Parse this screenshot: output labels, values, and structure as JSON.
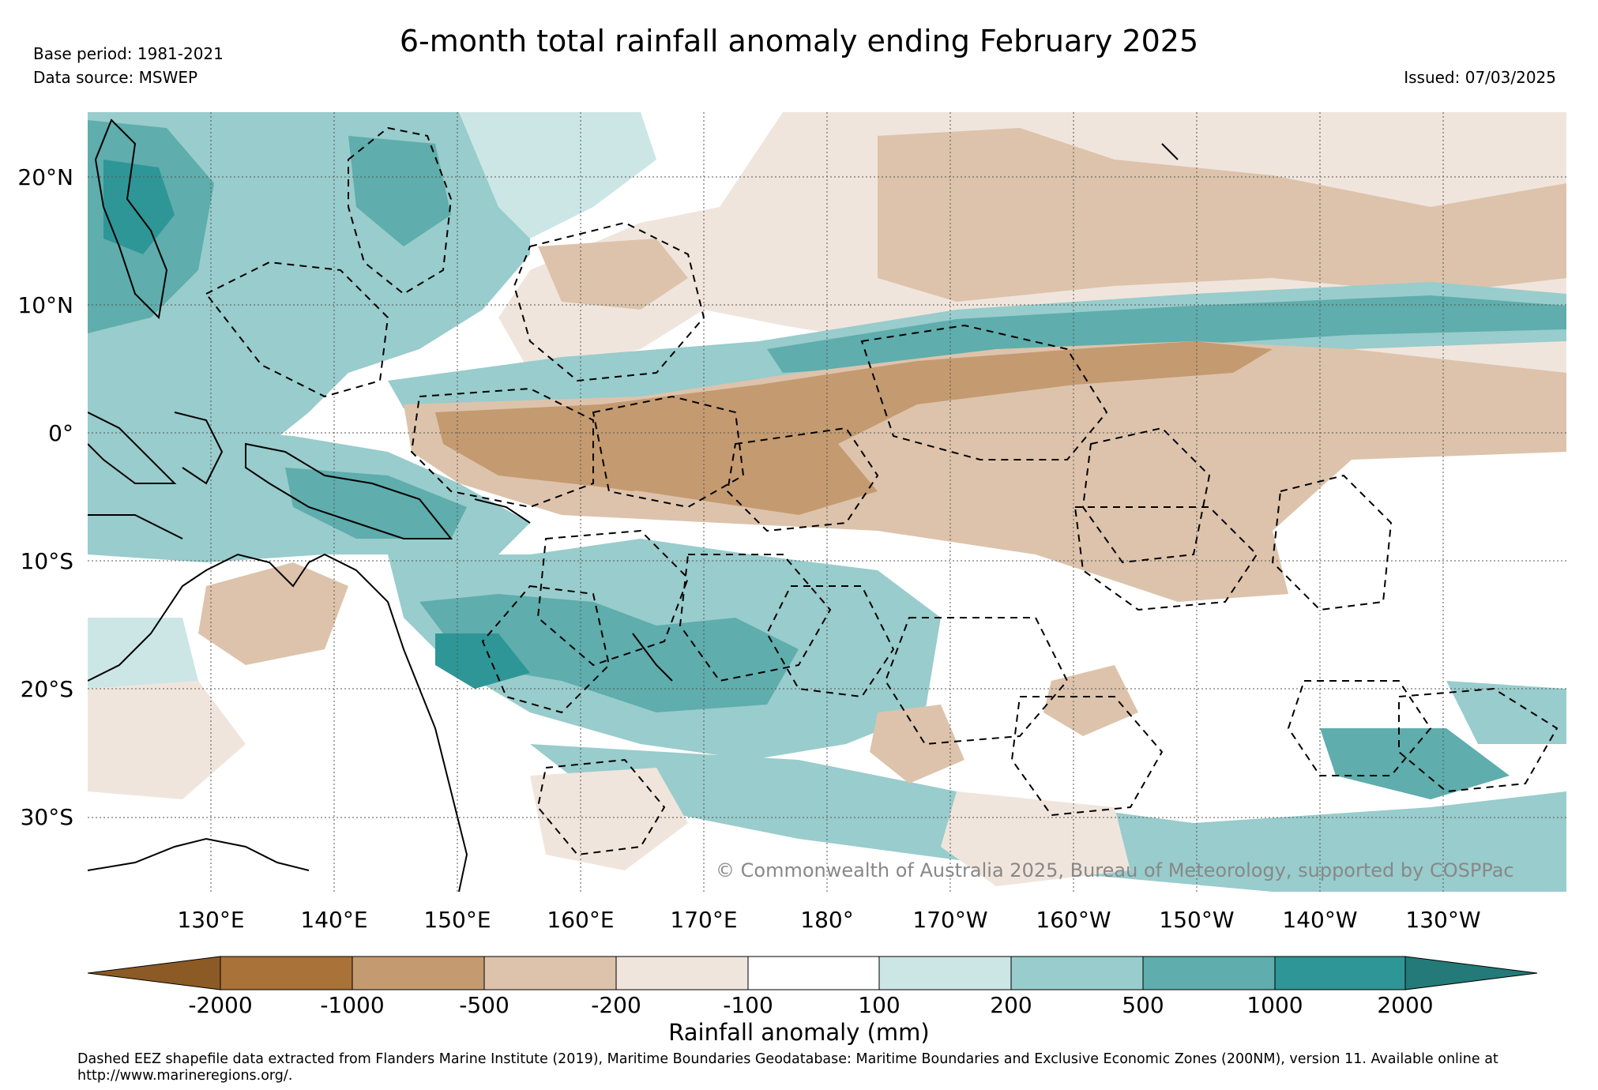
{
  "header": {
    "title": "6-month total rainfall anomaly ending February 2025",
    "base_period": "Base period: 1981-2021",
    "data_source": "Data source: MSWEP",
    "issued": "Issued: 07/03/2025"
  },
  "map": {
    "region": "Tropical Pacific and Maritime Continent",
    "projection": "equirectangular",
    "lon_range": [
      120,
      240
    ],
    "lat_range": [
      -36,
      25
    ],
    "lat_ticks": [
      "20°N",
      "10°N",
      "0°",
      "10°S",
      "20°S",
      "30°S"
    ],
    "lon_ticks": [
      "130°E",
      "140°E",
      "150°E",
      "160°E",
      "170°E",
      "180°",
      "170°W",
      "160°W",
      "150°W",
      "140°W",
      "130°W"
    ],
    "gridlines": true,
    "overlay": "Dashed EEZ boundaries and coastlines",
    "copyright": "© Commonwealth of Australia 2025, Bureau of Meteorology, supported by COSPPac"
  },
  "colorbar": {
    "label": "Rainfall anomaly (mm)",
    "ticks": [
      "-2000",
      "-1000",
      "-500",
      "-200",
      "-100",
      "100",
      "200",
      "500",
      "1000",
      "2000"
    ],
    "colors": [
      "#8c5a24",
      "#a87238",
      "#c49a70",
      "#ddc3ab",
      "#f0e5dc",
      "#ffffff",
      "#cce6e6",
      "#99cccc",
      "#5fadad",
      "#2e9696",
      "#237a78"
    ]
  },
  "footnote": "Dashed EEZ shapefile data extracted from Flanders Marine Institute (2019), Maritime Boundaries Geodatabase: Maritime Boundaries and Exclusive Economic Zones (200NM), version 11. Available online at http://www.marineregions.org/."
}
